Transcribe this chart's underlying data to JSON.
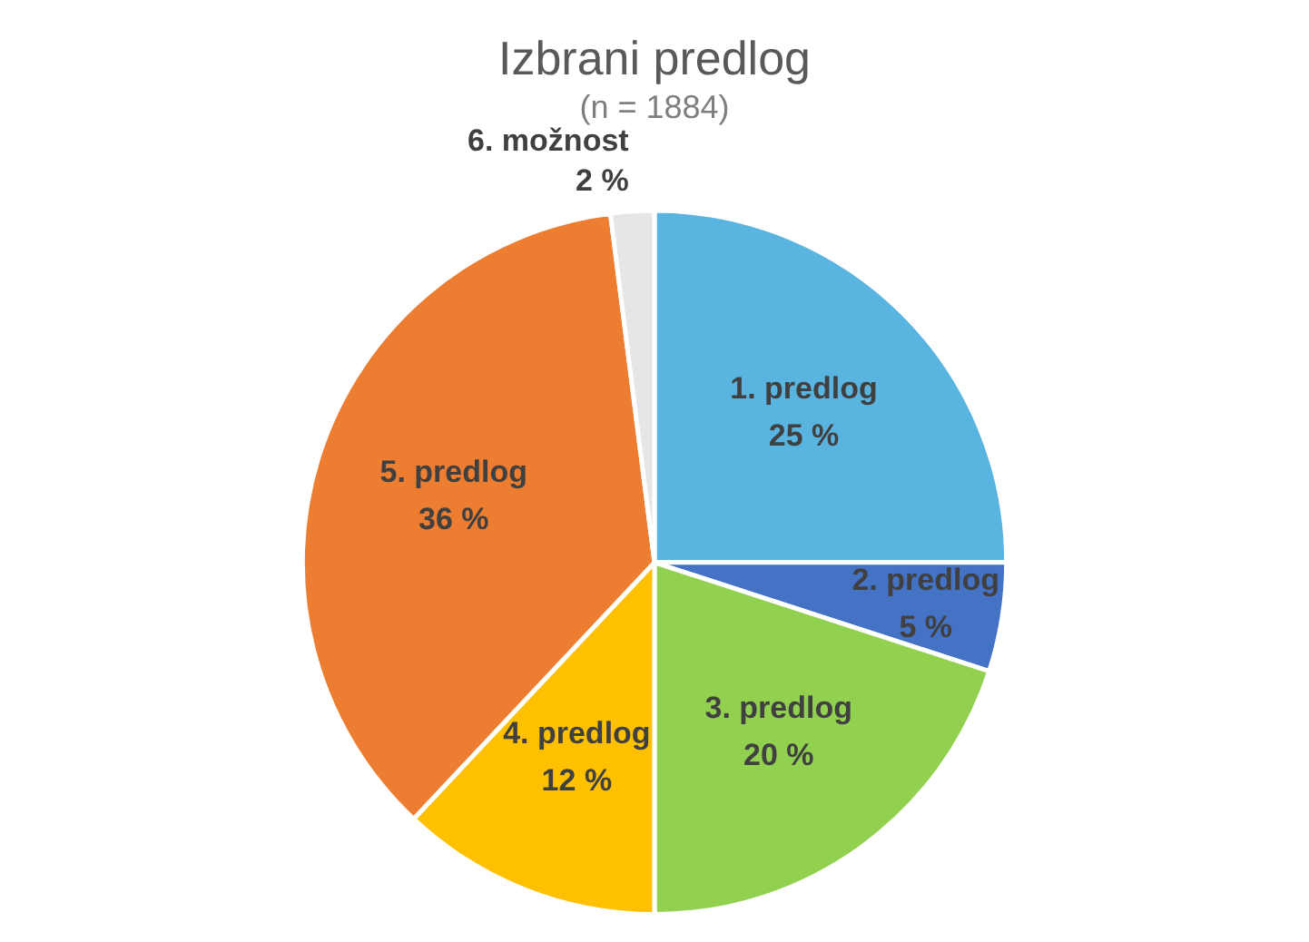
{
  "chart_data": {
    "type": "pie",
    "title": "Izbrani predlog",
    "subtitle": "(n = 1884)",
    "categories": [
      "1. predlog",
      "2. predlog",
      "3. predlog",
      "4. predlog",
      "5. predlog",
      "6. možnost"
    ],
    "values": [
      25,
      5,
      20,
      12,
      36,
      2
    ],
    "value_labels": [
      "25 %",
      "5 %",
      "20 %",
      "12 %",
      "36 %",
      "2 %"
    ],
    "colors": [
      "#5ab4e0",
      "#4472c4",
      "#92d050",
      "#ffc000",
      "#ed7d31",
      "#e7e6e6"
    ],
    "legend": false
  }
}
